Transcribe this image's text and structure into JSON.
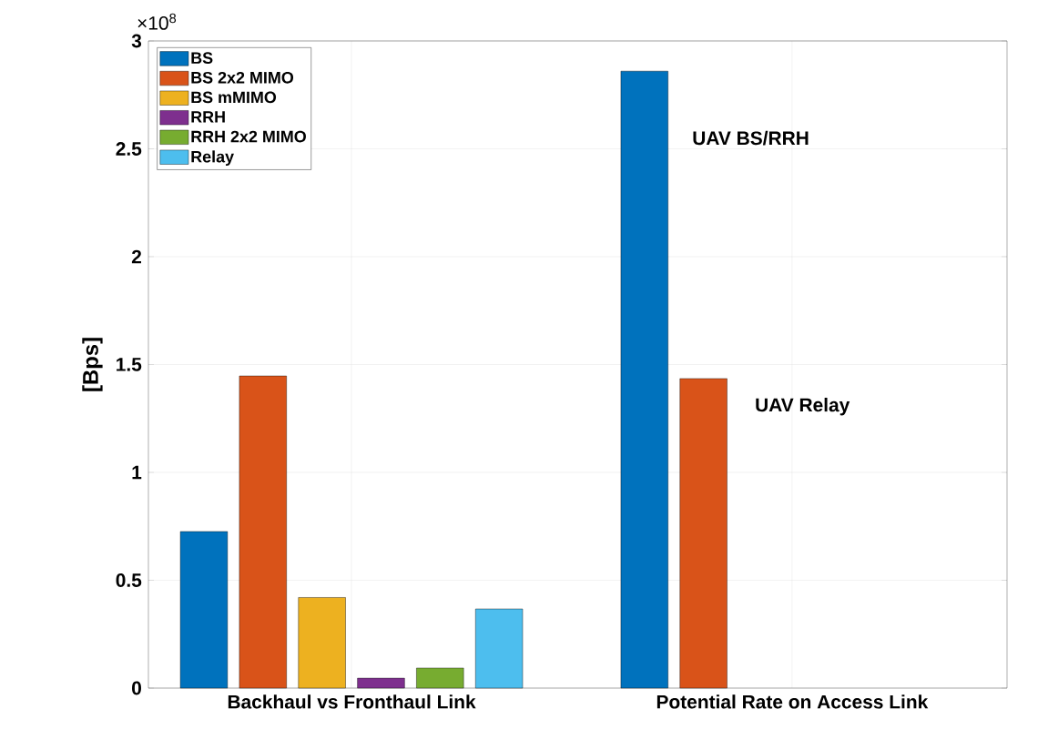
{
  "chart_data": {
    "type": "bar",
    "ylabel": "[Bps]",
    "categories": [
      "Backhaul vs Fronthaul Link",
      "Potential Rate on Access Link"
    ],
    "series": [
      {
        "name": "BS",
        "color": "#0072bd",
        "values": [
          0.726,
          2.86
        ]
      },
      {
        "name": "BS 2x2 MIMO",
        "color": "#d95319",
        "values": [
          1.447,
          1.435
        ]
      },
      {
        "name": "BS mMIMO",
        "color": "#edb120",
        "values": [
          0.42,
          null
        ]
      },
      {
        "name": "RRH",
        "color": "#7e2f8e",
        "values": [
          0.046,
          null
        ]
      },
      {
        "name": "RRH 2x2 MIMO",
        "color": "#77ac30",
        "values": [
          0.093,
          null
        ]
      },
      {
        "name": "Relay",
        "color": "#4dbeee",
        "values": [
          0.367,
          null
        ]
      }
    ],
    "ylim": [
      0,
      3
    ],
    "yticks": [
      0,
      0.5,
      1,
      1.5,
      2,
      2.5,
      3
    ],
    "annotations": [
      "UAV BS/RRH",
      "UAV Relay",
      "×10$^{8}$"
    ],
    "grid": true,
    "legend": "top left"
  }
}
